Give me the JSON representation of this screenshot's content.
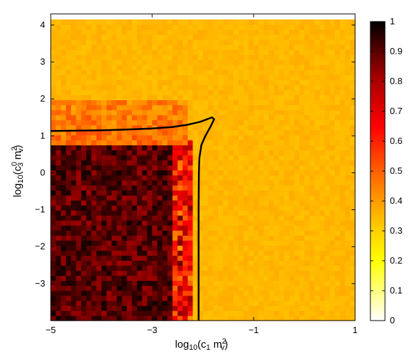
{
  "chart_data": {
    "type": "heatmap",
    "title": "",
    "xlabel": {
      "prefix": "log",
      "sub1": "10",
      "mid": "(c",
      "sub2": "1",
      "mid2": " m",
      "sup": "2",
      "sub3": "v",
      "suffix": ")"
    },
    "ylabel": {
      "prefix": "log",
      "sub1": "10",
      "mid": "(c",
      "sup1": "0",
      "sub2": "3",
      "mid2": " m",
      "sup2": "2",
      "sub3": "v",
      "suffix": ")"
    },
    "xlim": [
      -5,
      1
    ],
    "ylim": [
      -4,
      4.3
    ],
    "x_ticks": [
      {
        "value": -5,
        "label": "−5"
      },
      {
        "value": -3,
        "label": "−3"
      },
      {
        "value": -1,
        "label": "−1"
      },
      {
        "value": 1,
        "label": "1"
      }
    ],
    "y_ticks": [
      {
        "value": -3,
        "label": "−3"
      },
      {
        "value": -2,
        "label": "−2"
      },
      {
        "value": -1,
        "label": "−1"
      },
      {
        "value": 0,
        "label": "0"
      },
      {
        "value": 1,
        "label": "1"
      },
      {
        "value": 2,
        "label": "2"
      },
      {
        "value": 3,
        "label": "3"
      },
      {
        "value": 4,
        "label": "4"
      }
    ],
    "grid": {
      "x_range": [
        -5,
        1
      ],
      "y_range": [
        -4,
        4.15
      ],
      "n_x": 60,
      "n_y": 60,
      "background_value": 0.35,
      "regions": [
        {
          "description": "dark region",
          "x": [
            -5,
            -2.55
          ],
          "y": [
            -4,
            0.72
          ],
          "value_mean": 0.9,
          "value_spread": 0.08
        },
        {
          "description": "transition edge",
          "x": [
            -2.6,
            -2.25
          ],
          "y": [
            -4,
            0.85
          ],
          "value_mean": 0.6,
          "value_spread": 0.1
        },
        {
          "description": "noisy band above",
          "x": [
            -5,
            -2.3
          ],
          "y": [
            0.72,
            2.0
          ],
          "value_mean": 0.44,
          "value_spread": 0.07
        }
      ]
    },
    "contour": {
      "color": "#000000",
      "points": [
        [
          -5,
          1.13
        ],
        [
          -4.5,
          1.14
        ],
        [
          -4.0,
          1.15
        ],
        [
          -3.5,
          1.17
        ],
        [
          -3.0,
          1.2
        ],
        [
          -2.6,
          1.24
        ],
        [
          -2.3,
          1.3
        ],
        [
          -2.05,
          1.38
        ],
        [
          -1.9,
          1.46
        ],
        [
          -1.82,
          1.5
        ],
        [
          -1.78,
          1.45
        ],
        [
          -1.85,
          1.25
        ],
        [
          -1.95,
          1.0
        ],
        [
          -2.03,
          0.75
        ],
        [
          -2.07,
          0.4
        ],
        [
          -2.08,
          0.0
        ],
        [
          -2.085,
          -1.0
        ],
        [
          -2.085,
          -2.0
        ],
        [
          -2.085,
          -3.0
        ],
        [
          -2.085,
          -4.0
        ]
      ]
    },
    "colorbar": {
      "range": [
        0,
        1
      ],
      "ticks": [
        {
          "value": 0,
          "label": "0"
        },
        {
          "value": 0.1,
          "label": "0.1"
        },
        {
          "value": 0.2,
          "label": "0.2"
        },
        {
          "value": 0.3,
          "label": "0.3"
        },
        {
          "value": 0.4,
          "label": "0.4"
        },
        {
          "value": 0.5,
          "label": "0.5"
        },
        {
          "value": 0.6,
          "label": "0.6"
        },
        {
          "value": 0.7,
          "label": "0.7"
        },
        {
          "value": 0.8,
          "label": "0.8"
        },
        {
          "value": 0.9,
          "label": "0.9"
        },
        {
          "value": 1,
          "label": "1"
        }
      ],
      "colormap": "hot (reversed)"
    }
  }
}
